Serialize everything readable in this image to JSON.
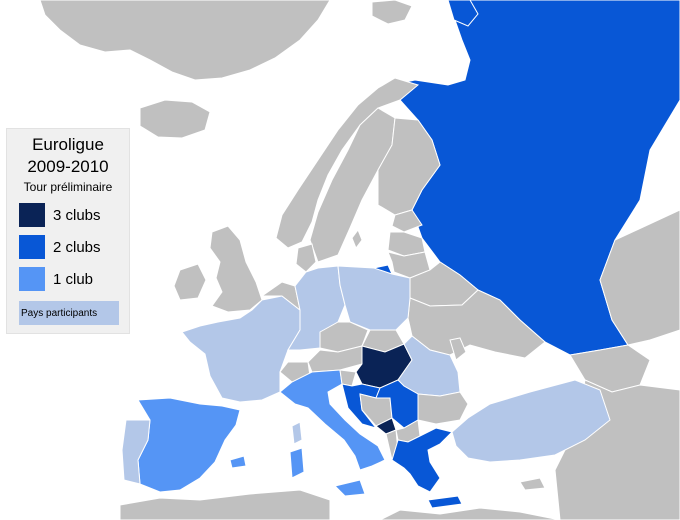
{
  "legend": {
    "title_line1": "Euroligue",
    "title_line2": "2009-2010",
    "subtitle": "Tour préliminaire",
    "items": [
      {
        "label": "3 clubs",
        "color": "#0a2356"
      },
      {
        "label": "2 clubs",
        "color": "#0857d6"
      },
      {
        "label": "1 club",
        "color": "#5595f5"
      },
      {
        "label": "Pays participants",
        "color": "#b3c7e8"
      }
    ]
  },
  "colors": {
    "sea": "#ffffff",
    "non_participant": "#c0c0c0",
    "border": "#ffffff"
  }
}
